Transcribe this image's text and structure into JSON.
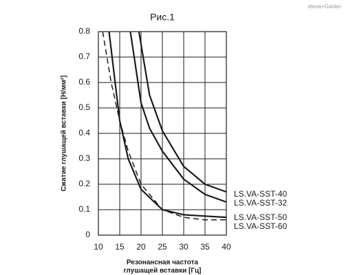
{
  "chart_data": {
    "type": "line",
    "title": "Рис.1",
    "logo": "elesa+Ganter",
    "x_label": [
      "Резонансная частота",
      "глушащей вставки [Гц]"
    ],
    "y_label": "Сжатие глушащей вставки  [Н/мм²]",
    "xlim": [
      10,
      40
    ],
    "xticks": [
      10,
      15,
      20,
      25,
      30,
      35,
      40
    ],
    "ylim": [
      0,
      0.8
    ],
    "yticks": [
      0,
      0.1,
      0.2,
      0.3,
      0.4,
      0.5,
      0.6,
      0.7,
      0.8
    ],
    "grid": true,
    "series": [
      {
        "name": "LS.VA-SST-40",
        "color": "#1a1a1a",
        "dash": false,
        "x": [
          19.5,
          22,
          25,
          30,
          35,
          40
        ],
        "values": [
          0.8,
          0.55,
          0.41,
          0.27,
          0.2,
          0.17
        ]
      },
      {
        "name": "LS.VA-SST-32",
        "color": "#1a1a1a",
        "dash": false,
        "x": [
          17.5,
          20,
          22,
          25,
          30,
          35,
          40
        ],
        "values": [
          0.8,
          0.52,
          0.42,
          0.33,
          0.22,
          0.16,
          0.13
        ]
      },
      {
        "name": "LS.VA-SST-50",
        "color": "#1a1a1a",
        "dash": false,
        "x": [
          12.5,
          15,
          17,
          20,
          25,
          30,
          35,
          40
        ],
        "values": [
          0.8,
          0.45,
          0.3,
          0.18,
          0.1,
          0.08,
          0.075,
          0.07
        ]
      },
      {
        "name": "LS.VA-SST-60",
        "color": "#1a1a1a",
        "dash": true,
        "x": [
          11,
          13,
          15,
          17,
          20,
          25,
          30,
          35,
          40
        ],
        "values": [
          0.8,
          0.6,
          0.45,
          0.33,
          0.2,
          0.1,
          0.07,
          0.06,
          0.06
        ]
      }
    ]
  }
}
